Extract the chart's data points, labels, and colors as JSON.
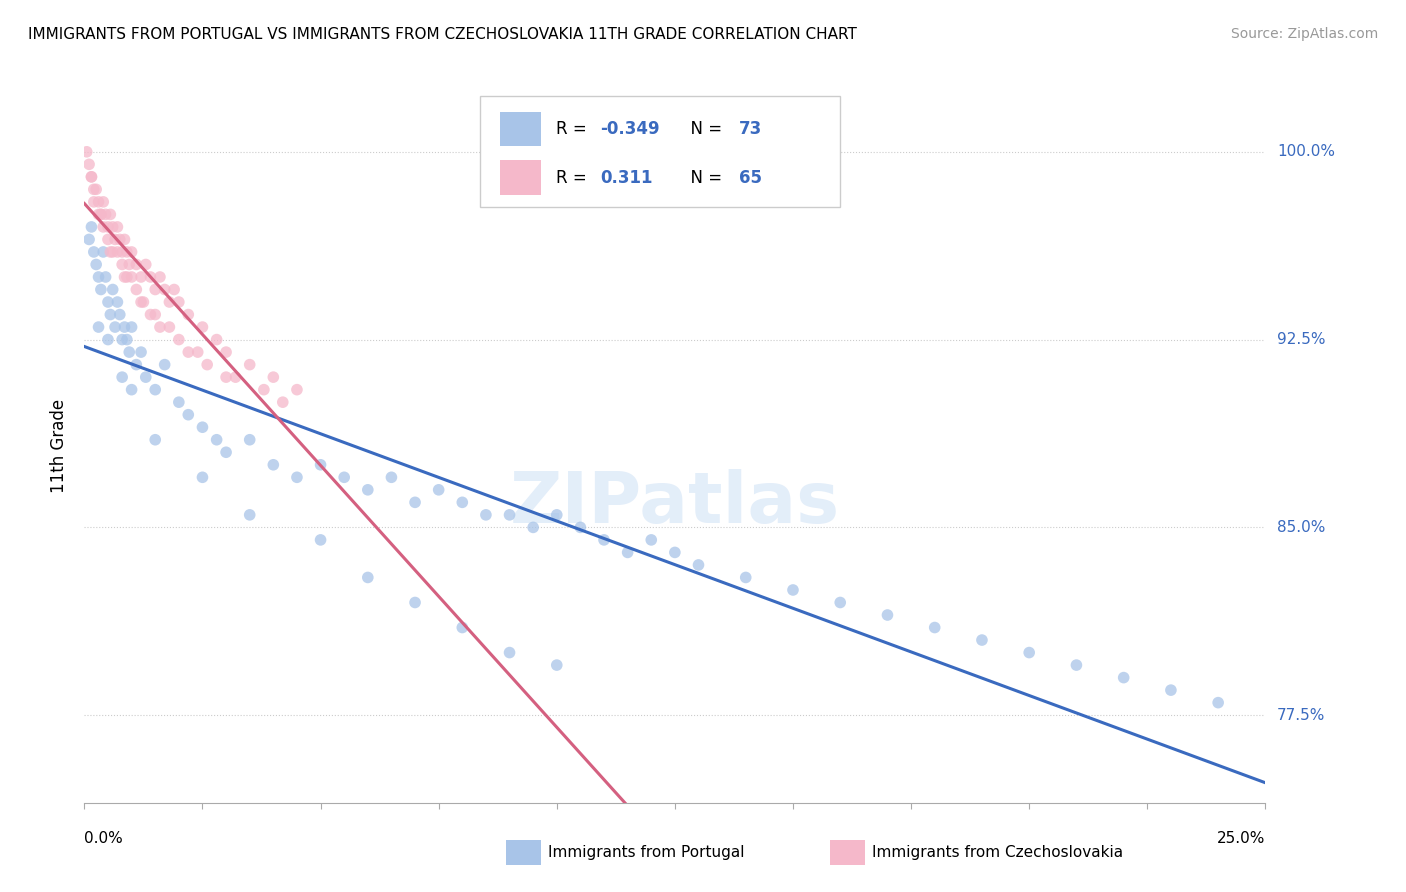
{
  "title": "IMMIGRANTS FROM PORTUGAL VS IMMIGRANTS FROM CZECHOSLOVAKIA 11TH GRADE CORRELATION CHART",
  "source": "Source: ZipAtlas.com",
  "ylabel": "11th Grade",
  "y_ticks": [
    77.5,
    85.0,
    92.5,
    100.0
  ],
  "y_tick_labels": [
    "77.5%",
    "85.0%",
    "92.5%",
    "100.0%"
  ],
  "xlim": [
    0.0,
    25.0
  ],
  "ylim": [
    74.0,
    102.5
  ],
  "blue_R": -0.349,
  "blue_N": 73,
  "pink_R": 0.311,
  "pink_N": 65,
  "blue_color": "#a8c4e8",
  "pink_color": "#f5b8ca",
  "blue_line_color": "#3a6abf",
  "pink_line_color": "#d46080",
  "legend_label_blue": "Immigrants from Portugal",
  "legend_label_pink": "Immigrants from Czechoslovakia",
  "blue_x": [
    0.1,
    0.15,
    0.2,
    0.25,
    0.3,
    0.35,
    0.4,
    0.45,
    0.5,
    0.55,
    0.6,
    0.65,
    0.7,
    0.75,
    0.8,
    0.85,
    0.9,
    0.95,
    1.0,
    1.1,
    1.2,
    1.3,
    1.5,
    1.7,
    2.0,
    2.2,
    2.5,
    2.8,
    3.0,
    3.5,
    4.0,
    4.5,
    5.0,
    5.5,
    6.0,
    6.5,
    7.0,
    7.5,
    8.0,
    8.5,
    9.0,
    9.5,
    10.0,
    10.5,
    11.0,
    11.5,
    12.0,
    12.5,
    13.0,
    14.0,
    15.0,
    16.0,
    17.0,
    18.0,
    19.0,
    20.0,
    21.0,
    22.0,
    23.0,
    24.0,
    0.3,
    0.5,
    0.8,
    1.0,
    1.5,
    2.5,
    3.5,
    5.0,
    6.0,
    7.0,
    8.0,
    9.0,
    10.0
  ],
  "blue_y": [
    96.5,
    97.0,
    96.0,
    95.5,
    95.0,
    94.5,
    96.0,
    95.0,
    94.0,
    93.5,
    94.5,
    93.0,
    94.0,
    93.5,
    92.5,
    93.0,
    92.5,
    92.0,
    93.0,
    91.5,
    92.0,
    91.0,
    90.5,
    91.5,
    90.0,
    89.5,
    89.0,
    88.5,
    88.0,
    88.5,
    87.5,
    87.0,
    87.5,
    87.0,
    86.5,
    87.0,
    86.0,
    86.5,
    86.0,
    85.5,
    85.5,
    85.0,
    85.5,
    85.0,
    84.5,
    84.0,
    84.5,
    84.0,
    83.5,
    83.0,
    82.5,
    82.0,
    81.5,
    81.0,
    80.5,
    80.0,
    79.5,
    79.0,
    78.5,
    78.0,
    93.0,
    92.5,
    91.0,
    90.5,
    88.5,
    87.0,
    85.5,
    84.5,
    83.0,
    82.0,
    81.0,
    80.0,
    79.5
  ],
  "pink_x": [
    0.05,
    0.1,
    0.15,
    0.2,
    0.25,
    0.3,
    0.35,
    0.4,
    0.45,
    0.5,
    0.55,
    0.6,
    0.65,
    0.7,
    0.75,
    0.8,
    0.85,
    0.9,
    0.95,
    1.0,
    1.1,
    1.2,
    1.3,
    1.4,
    1.5,
    1.6,
    1.7,
    1.8,
    1.9,
    2.0,
    2.2,
    2.5,
    2.8,
    3.0,
    3.5,
    4.0,
    4.5,
    0.2,
    0.4,
    0.6,
    0.8,
    1.0,
    1.2,
    1.5,
    1.8,
    2.2,
    2.6,
    3.2,
    3.8,
    0.3,
    0.5,
    0.7,
    0.9,
    1.1,
    1.4,
    1.6,
    2.0,
    2.4,
    3.0,
    4.2,
    0.15,
    0.35,
    0.55,
    0.85,
    1.25
  ],
  "pink_y": [
    100.0,
    99.5,
    99.0,
    98.5,
    98.5,
    98.0,
    97.5,
    98.0,
    97.5,
    97.0,
    97.5,
    97.0,
    96.5,
    97.0,
    96.5,
    96.0,
    96.5,
    96.0,
    95.5,
    96.0,
    95.5,
    95.0,
    95.5,
    95.0,
    94.5,
    95.0,
    94.5,
    94.0,
    94.5,
    94.0,
    93.5,
    93.0,
    92.5,
    92.0,
    91.5,
    91.0,
    90.5,
    98.0,
    97.0,
    96.0,
    95.5,
    95.0,
    94.0,
    93.5,
    93.0,
    92.0,
    91.5,
    91.0,
    90.5,
    97.5,
    96.5,
    96.0,
    95.0,
    94.5,
    93.5,
    93.0,
    92.5,
    92.0,
    91.0,
    90.0,
    99.0,
    97.5,
    96.0,
    95.0,
    94.0
  ]
}
